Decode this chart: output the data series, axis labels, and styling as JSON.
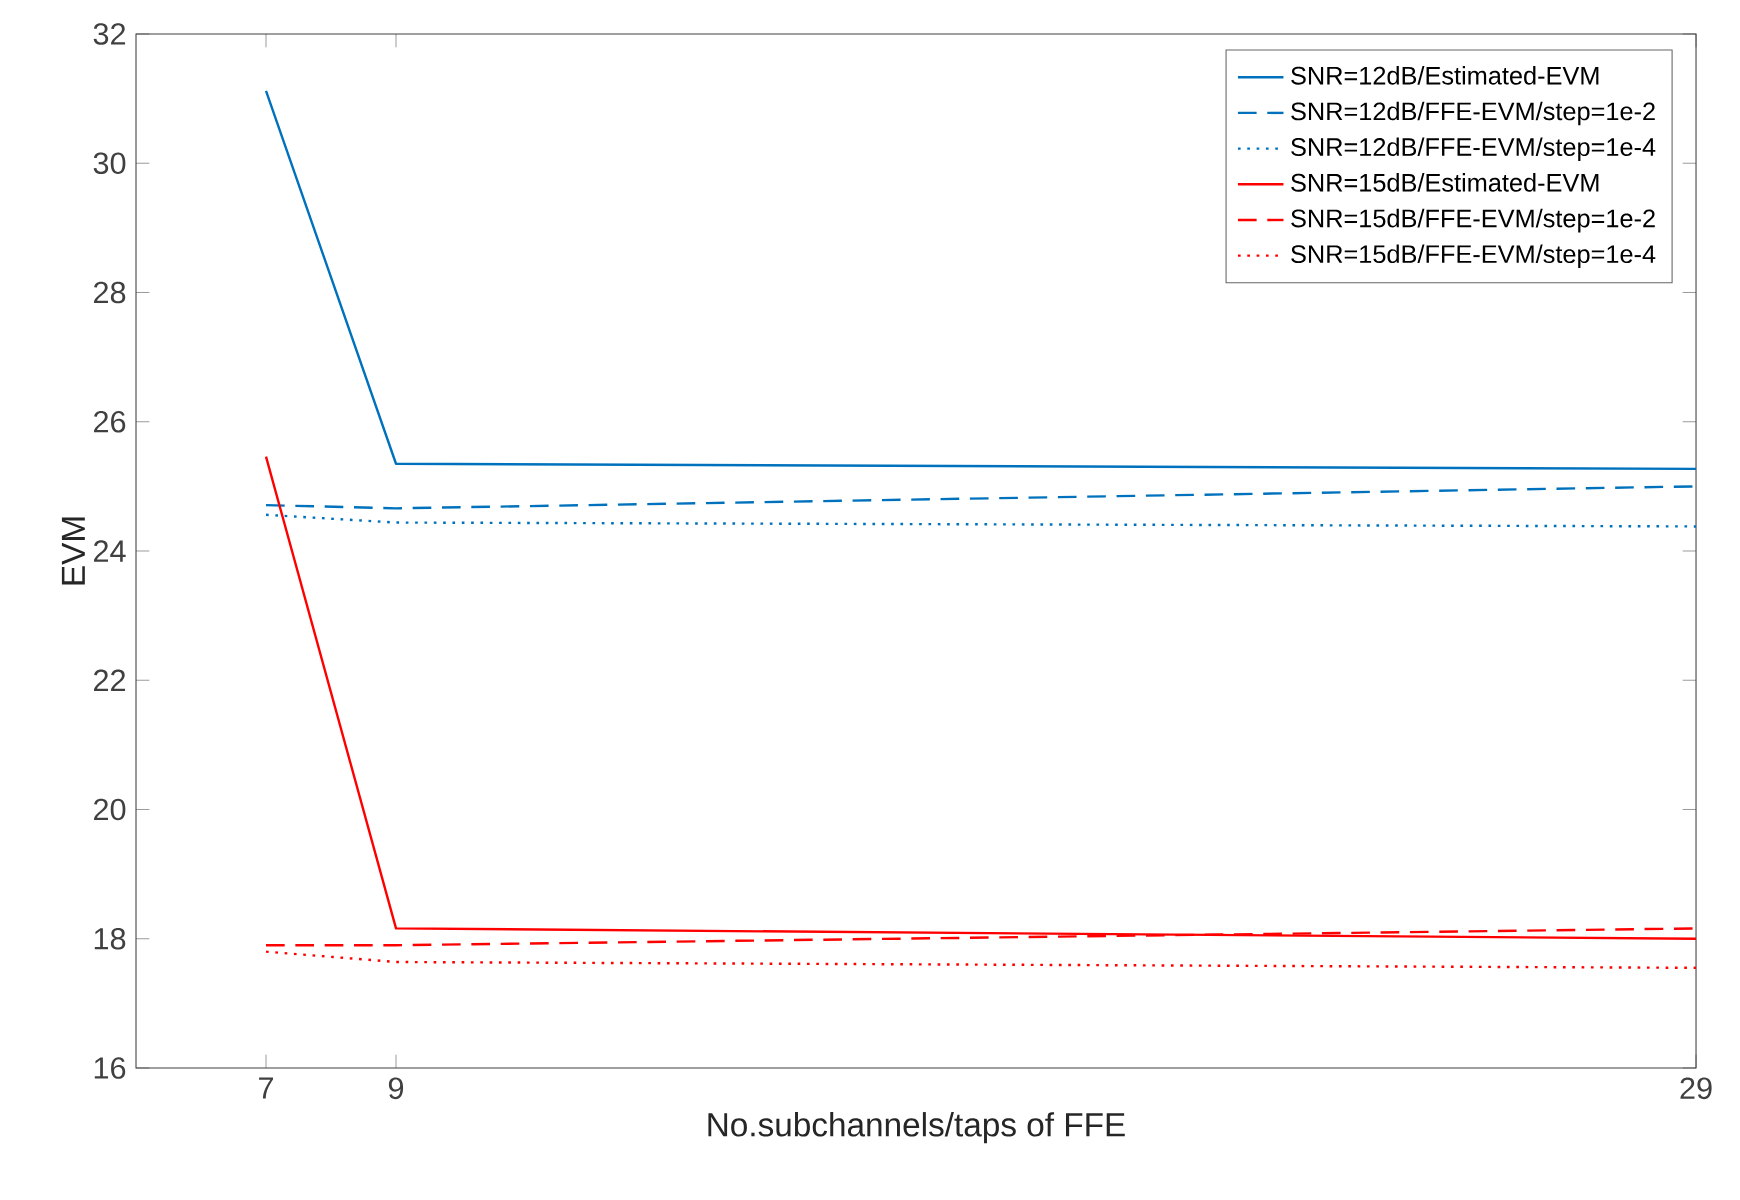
{
  "chart_data": {
    "type": "line",
    "xlabel": "No.subchannels/taps of FFE",
    "ylabel": "EVM",
    "x": [
      7,
      9,
      29
    ],
    "xlim": [
      5,
      29
    ],
    "xticks": [
      7,
      9,
      29
    ],
    "ylim": [
      16,
      32
    ],
    "yticks": [
      16,
      18,
      20,
      22,
      24,
      26,
      28,
      30,
      32
    ],
    "legend": "top right",
    "grid": false,
    "marker": "none",
    "series": [
      {
        "name": "SNR=12dB/Estimated-EVM",
        "color": "#0072bd",
        "line_style": "solid",
        "values": [
          31.12,
          25.35,
          25.27
        ]
      },
      {
        "name": "SNR=12dB/FFE-EVM/step=1e-2",
        "color": "#0072bd",
        "line_style": "dashed",
        "values": [
          24.71,
          24.66,
          25.0
        ]
      },
      {
        "name": "SNR=12dB/FFE-EVM/step=1e-4",
        "color": "#0072bd",
        "line_style": "dotted",
        "values": [
          24.56,
          24.44,
          24.38
        ]
      },
      {
        "name": "SNR=15dB/Estimated-EVM",
        "color": "#ff0000",
        "line_style": "solid",
        "values": [
          25.46,
          18.16,
          18.0
        ]
      },
      {
        "name": "SNR=15dB/FFE-EVM/step=1e-2",
        "color": "#ff0000",
        "line_style": "dashed",
        "values": [
          17.9,
          17.9,
          18.16
        ]
      },
      {
        "name": "SNR=15dB/FFE-EVM/step=1e-4",
        "color": "#ff0000",
        "line_style": "dotted",
        "values": [
          17.8,
          17.64,
          17.55
        ]
      }
    ]
  }
}
